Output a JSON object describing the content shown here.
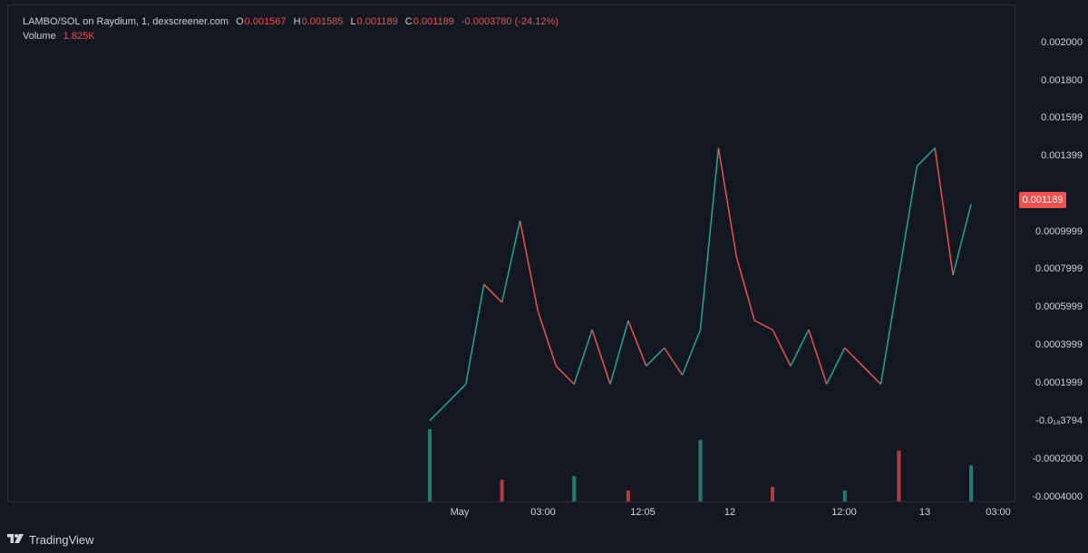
{
  "legend": {
    "symbol": "LAMBO/SOL on Raydium, 1, dexscreener.com",
    "open_label": "O",
    "open": "0.001567",
    "high_label": "H",
    "high": "0.001585",
    "low_label": "L",
    "low": "0.001189",
    "close_label": "C",
    "close": "0.001189",
    "change": "-0.0003780 (-24.12%)",
    "volume_label": "Volume",
    "volume": "1.825K"
  },
  "price_axis": {
    "ticks": [
      "0.002000",
      "0.001800",
      "0.001599",
      "0.001399",
      "0.0009999",
      "0.0007999",
      "0.0005999",
      "0.0003999",
      "0.0001999",
      "-0.0₁₈3794",
      "-0.0002000",
      "-0.0004000"
    ],
    "current_price": "0.001189"
  },
  "time_axis": {
    "ticks": [
      "May",
      "03:00",
      "12:05",
      "12",
      "12:00",
      "13",
      "03:00"
    ]
  },
  "brand": {
    "name": "TradingView"
  },
  "colors": {
    "up": "#26a69a",
    "down": "#ef5350",
    "background": "#131722",
    "text": "#d1d4dc"
  },
  "chart_data": {
    "type": "line",
    "title": "LAMBO/SOL on Raydium, 1, dexscreener.com",
    "xlabel": "",
    "ylabel": "",
    "x_labels": [
      "May",
      "03:00",
      "12:05",
      "12",
      "12:00",
      "13",
      "03:00"
    ],
    "series": [
      {
        "x": [
          "May 11 00:00",
          "May 11 01:00",
          "May 11 02:00",
          "May 11 03:00",
          "May 11 04:00",
          "May 11 05:00",
          "May 11 06:00",
          "May 11 08:00",
          "May 11 10:00",
          "May 11 12:05",
          "May 11 14:00",
          "May 11 16:00",
          "May 11 18:00",
          "May 11 20:00",
          "May 11 22:00",
          "May 12 00:00",
          "May 12 00:30",
          "May 12 02:00",
          "May 12 04:00",
          "May 12 06:00",
          "May 12 08:00",
          "May 12 10:00",
          "May 12 12:00",
          "May 12 14:00",
          "May 12 16:00",
          "May 12 18:00",
          "May 12 20:00",
          "May 12 22:00",
          "May 13 00:00",
          "May 13 01:00",
          "May 13 02:00"
        ],
        "values": [
          0.0,
          0.0001,
          0.0002,
          0.00075,
          0.00065,
          0.0011,
          0.0006,
          0.0003,
          0.0002,
          0.0005,
          0.0002,
          0.00055,
          0.0003,
          0.0004,
          0.00025,
          0.0005,
          0.0015,
          0.0009,
          0.00055,
          0.0005,
          0.0003,
          0.0005,
          0.0002,
          0.0004,
          0.0003,
          0.0002,
          0.0008,
          0.0014,
          0.0015,
          0.0008,
          0.00119
        ]
      }
    ],
    "volume_series": {
      "name": "Volume",
      "x": [
        "May 11 00:00",
        "May 11 03:00",
        "May 11 05:00",
        "May 11 12:05",
        "May 12 00:30",
        "May 12 06:00",
        "May 12 12:00",
        "May 12 22:00",
        "May 13 01:00"
      ],
      "values": [
        1,
        0.3,
        0.35,
        0.15,
        0.85,
        0.2,
        0.15,
        0.7,
        0.5
      ]
    },
    "ylim": [
      -0.0004,
      0.0021
    ],
    "grid": true,
    "legend_position": "top-left"
  }
}
